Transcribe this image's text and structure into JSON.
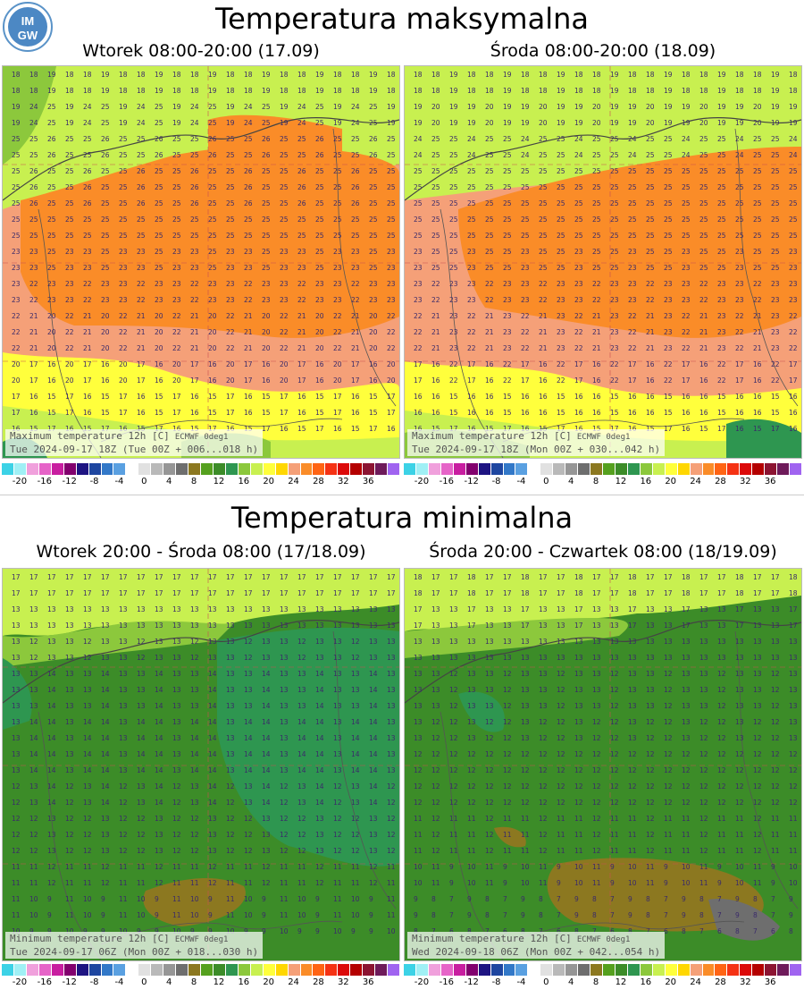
{
  "logo": {
    "name": "imgw-logo",
    "text_top": "IM",
    "text_bottom": "GW"
  },
  "max_section": {
    "title": "Temperatura maksymalna",
    "panels": [
      {
        "subtitle": "Wtorek 08:00-20:00 (17.09)",
        "caption_line1": "Maximum temperature 12h [C]",
        "caption_src": "ECMWF 0deg1",
        "caption_line2": "Tue 2024-09-17 18Z (Tue 00Z + 006...018 h)"
      },
      {
        "subtitle": "Środa 08:00-20:00 (18.09)",
        "caption_line1": "Maximum temperature 12h [C]",
        "caption_src": "ECMWF 0deg1",
        "caption_line2": "Tue 2024-09-17 18Z (Mon 00Z + 030...042 h)"
      }
    ]
  },
  "min_section": {
    "title": "Temperatura minimalna",
    "panels": [
      {
        "subtitle": "Wtorek 20:00 - Środa 08:00 (17/18.09)",
        "caption_line1": "Minimum temperature 12h [C]",
        "caption_src": "ECMWF 0deg1",
        "caption_line2": "Tue 2024-09-17 06Z (Mon 00Z + 018...030 h)"
      },
      {
        "subtitle": "Środa 20:00 - Czwartek 08:00 (18/19.09)",
        "caption_line1": "Minimum temperature 12h [C]",
        "caption_src": "ECMWF 0deg1",
        "caption_line2": "Wed 2024-09-18 06Z (Mon 00Z + 042...054 h)"
      }
    ]
  },
  "scale": {
    "colors": [
      "#3cd2e6",
      "#a0f0f5",
      "#f0a0dc",
      "#e664c8",
      "#c81ea0",
      "#82006e",
      "#1e1482",
      "#1e46a0",
      "#3278c8",
      "#5aa0e1",
      "#ffffff",
      "#e1e1e1",
      "#b9b9b9",
      "#969696",
      "#6e6e6e",
      "#8c7820",
      "#55a01e",
      "#3c8c28",
      "#2e9650",
      "#8cc83c",
      "#c8f050",
      "#ffff3c",
      "#ffd700",
      "#f5a078",
      "#fa8c28",
      "#ff6414",
      "#f53214",
      "#dc0a0a",
      "#b40000",
      "#8c1432",
      "#6e1a5a",
      "#a064f0"
    ],
    "tick_labels": [
      "-20",
      "-16",
      "-12",
      "-8",
      "-4",
      "0",
      "4",
      "8",
      "12",
      "16",
      "20",
      "24",
      "28",
      "32",
      "36"
    ]
  },
  "map_values": {
    "max_left_sample": [
      "18",
      "19",
      "24",
      "25",
      "26",
      "23",
      "22",
      "21",
      "20",
      "17",
      "16",
      "15"
    ],
    "max_right_sample": [
      "18",
      "19",
      "20",
      "24",
      "25",
      "23",
      "22",
      "21",
      "17",
      "16",
      "15"
    ],
    "min_left_sample": [
      "17",
      "15",
      "14",
      "13",
      "12",
      "11",
      "10",
      "9"
    ],
    "min_right_sample": [
      "18",
      "17",
      "15",
      "13",
      "12",
      "11",
      "10",
      "9",
      "8",
      "7",
      "6"
    ]
  }
}
